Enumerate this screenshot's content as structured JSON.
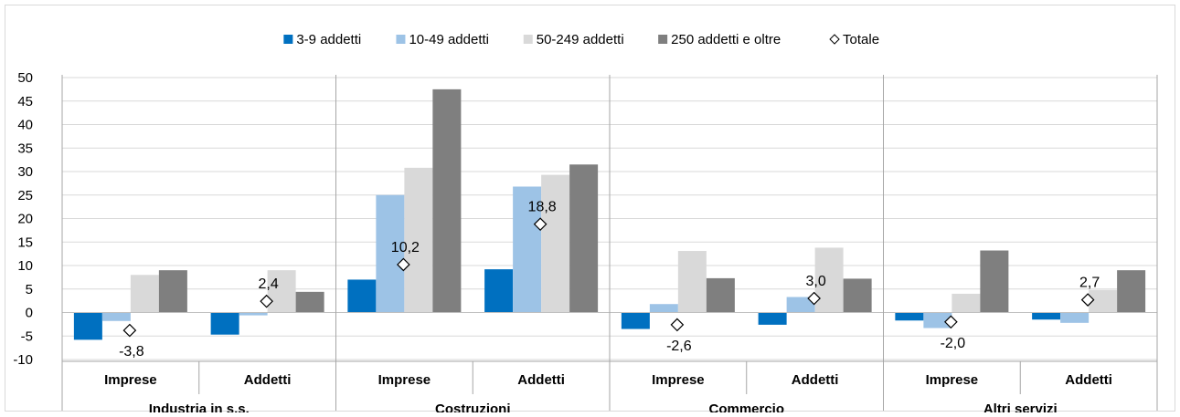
{
  "chart_data": {
    "type": "bar",
    "groups": [
      "Industria in s.s.",
      "Costruzioni",
      "Commercio",
      "Altri servizi"
    ],
    "subcategories": [
      "Imprese",
      "Addetti"
    ],
    "categories": [
      "Industria in s.s. - Imprese",
      "Industria in s.s. - Addetti",
      "Costruzioni - Imprese",
      "Costruzioni - Addetti",
      "Commercio - Imprese",
      "Commercio - Addetti",
      "Altri servizi - Imprese",
      "Altri servizi - Addetti"
    ],
    "series": [
      {
        "name": "3-9 addetti",
        "color": "#0070c0",
        "values": [
          -5.8,
          -4.7,
          7.0,
          9.2,
          -3.5,
          -2.6,
          -1.7,
          -1.5
        ]
      },
      {
        "name": "10-49 addetti",
        "color": "#9dc3e6",
        "values": [
          -1.8,
          -0.6,
          25.0,
          26.8,
          1.8,
          3.3,
          -3.3,
          -2.2
        ]
      },
      {
        "name": "50-249 addetti",
        "color": "#d9d9d9",
        "values": [
          8.0,
          9.0,
          30.8,
          29.3,
          13.1,
          13.8,
          4.0,
          4.8
        ]
      },
      {
        "name": "250 addetti e oltre",
        "color": "#7f7f7f",
        "values": [
          9.0,
          4.4,
          47.5,
          31.5,
          7.3,
          7.2,
          13.2,
          9.0
        ]
      }
    ],
    "total": {
      "name": "Totale",
      "values": [
        -3.8,
        2.4,
        10.2,
        18.8,
        -2.6,
        3.0,
        -2.0,
        2.7
      ],
      "labels": [
        "-3,8",
        "2,4",
        "10,2",
        "18,8",
        "-2,6",
        "3,0",
        "-2,0",
        "2,7"
      ]
    },
    "yticks": [
      "50",
      "45",
      "40",
      "35",
      "30",
      "25",
      "20",
      "15",
      "10",
      "5",
      "0",
      "-5",
      "-10"
    ],
    "ylim": [
      -10,
      50
    ],
    "grid": true,
    "legend": "top-center"
  }
}
